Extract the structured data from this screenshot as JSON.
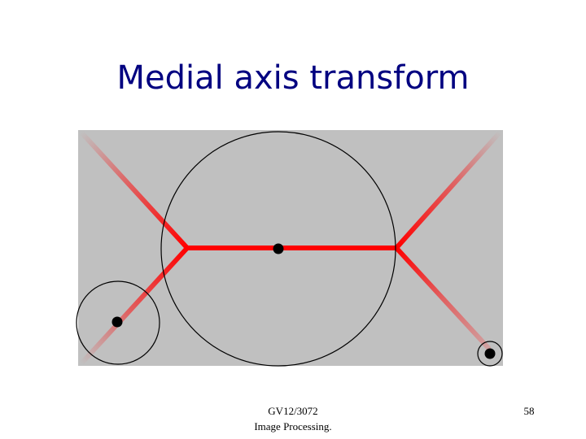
{
  "slide": {
    "title": "Medial axis transform",
    "footer_line1": "GV12/3072",
    "footer_line2": "Image Processing.",
    "page_number": "58"
  },
  "figure": {
    "shape_fill": "#c0c0c0",
    "axis_color": "#ff0000",
    "axis_fade_color": "#c0c0c0",
    "circle_stroke": "#000000",
    "center_dot_color": "#000000"
  }
}
